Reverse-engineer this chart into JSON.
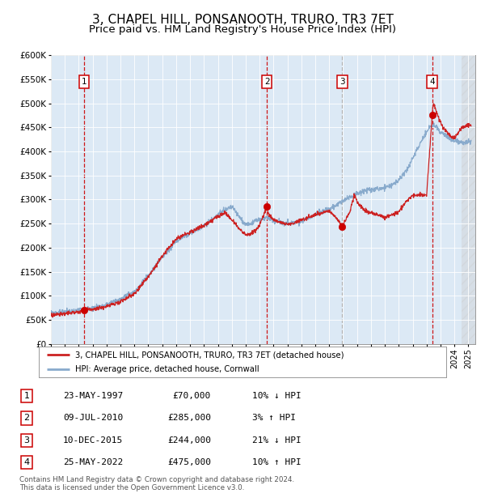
{
  "title": "3, CHAPEL HILL, PONSANOOTH, TRURO, TR3 7ET",
  "subtitle": "Price paid vs. HM Land Registry's House Price Index (HPI)",
  "title_fontsize": 11,
  "subtitle_fontsize": 9.5,
  "plot_bg_color": "#dce9f5",
  "fig_bg_color": "#ffffff",
  "xlim_left": 1995.0,
  "xlim_right": 2025.5,
  "ylim": [
    0,
    600000
  ],
  "yticks": [
    0,
    50000,
    100000,
    150000,
    200000,
    250000,
    300000,
    350000,
    400000,
    450000,
    500000,
    550000,
    600000
  ],
  "ytick_labels": [
    "£0",
    "£50K",
    "£100K",
    "£150K",
    "£200K",
    "£250K",
    "£300K",
    "£350K",
    "£400K",
    "£450K",
    "£500K",
    "£550K",
    "£600K"
  ],
  "xtick_years": [
    1995,
    1996,
    1997,
    1998,
    1999,
    2000,
    2001,
    2002,
    2003,
    2004,
    2005,
    2006,
    2007,
    2008,
    2009,
    2010,
    2011,
    2012,
    2013,
    2014,
    2015,
    2016,
    2017,
    2018,
    2019,
    2020,
    2021,
    2022,
    2023,
    2024,
    2025
  ],
  "sale_dates": [
    1997.39,
    2010.52,
    2015.94,
    2022.4
  ],
  "sale_prices": [
    70000,
    285000,
    244000,
    475000
  ],
  "sale_labels": [
    "1",
    "2",
    "3",
    "4"
  ],
  "sale_vline_colors": [
    "#cc0000",
    "#cc0000",
    "#aaaaaa",
    "#cc0000"
  ],
  "red_line_color": "#cc2222",
  "blue_line_color": "#88aacc",
  "marker_color": "#cc0000",
  "legend_label_red": "3, CHAPEL HILL, PONSANOOTH, TRURO, TR3 7ET (detached house)",
  "legend_label_blue": "HPI: Average price, detached house, Cornwall",
  "table_data": [
    [
      "1",
      "23-MAY-1997",
      "£70,000",
      "10% ↓ HPI"
    ],
    [
      "2",
      "09-JUL-2010",
      "£285,000",
      "3% ↑ HPI"
    ],
    [
      "3",
      "10-DEC-2015",
      "£244,000",
      "21% ↓ HPI"
    ],
    [
      "4",
      "25-MAY-2022",
      "£475,000",
      "10% ↑ HPI"
    ]
  ],
  "footer": "Contains HM Land Registry data © Crown copyright and database right 2024.\nThis data is licensed under the Open Government Licence v3.0.",
  "data_end_year": 2024.5
}
